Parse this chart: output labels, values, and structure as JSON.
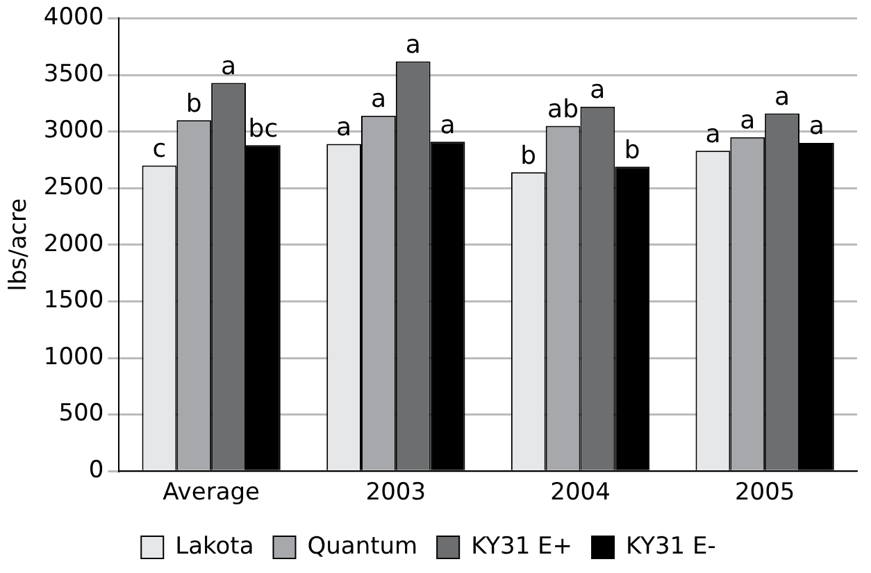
{
  "chart_data": {
    "type": "bar",
    "ylabel": "lbs/acre",
    "categories": [
      "Average",
      "2003",
      "2004",
      "2005"
    ],
    "series": [
      {
        "name": "Lakota",
        "color": "#e6e7e9",
        "values": [
          2700,
          2890,
          2640,
          2830
        ],
        "value_labels": [
          "c",
          "a",
          "b",
          "a"
        ]
      },
      {
        "name": "Quantum",
        "color": "#a7a8ab",
        "values": [
          3100,
          3140,
          3050,
          2950
        ],
        "value_labels": [
          "b",
          "a",
          "ab",
          "a"
        ]
      },
      {
        "name": "KY31 E+",
        "color": "#6d6e70",
        "values": [
          3430,
          3620,
          3220,
          3160
        ],
        "value_labels": [
          "a",
          "a",
          "a",
          "a"
        ]
      },
      {
        "name": "KY31 E-",
        "color": "#000000",
        "values": [
          2880,
          2910,
          2690,
          2900
        ],
        "value_labels": [
          "bc",
          "a",
          "b",
          "a"
        ]
      }
    ],
    "ylim": [
      0,
      4000
    ],
    "yticks": [
      0,
      500,
      1000,
      1500,
      2000,
      2500,
      3000,
      3500,
      4000
    ],
    "grid": "y",
    "legend": "bottom"
  }
}
